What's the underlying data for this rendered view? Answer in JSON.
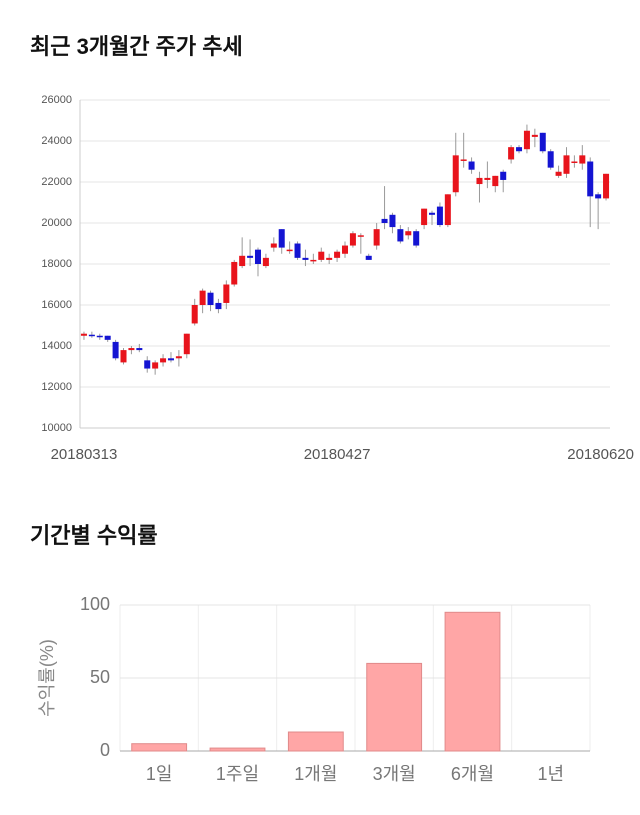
{
  "chart_data": [
    {
      "type": "candlestick",
      "title": "최근 3개월간 주가 추세",
      "categories": [
        "20180313",
        null,
        null,
        null,
        null,
        null,
        null,
        null,
        null,
        null,
        null,
        null,
        null,
        null,
        null,
        null,
        null,
        null,
        null,
        null,
        null,
        null,
        null,
        null,
        null,
        null,
        null,
        null,
        null,
        null,
        null,
        null,
        "20180427",
        null,
        null,
        null,
        null,
        null,
        null,
        null,
        null,
        null,
        null,
        null,
        null,
        null,
        null,
        null,
        null,
        null,
        null,
        null,
        null,
        null,
        null,
        null,
        null,
        null,
        null,
        null,
        null,
        null,
        null,
        null,
        null,
        null,
        "20180620"
      ],
      "open": [
        14500,
        14550,
        14500,
        14500,
        14200,
        13200,
        13800,
        13900,
        13300,
        12900,
        13200,
        13400,
        13400,
        13600,
        15100,
        16000,
        16600,
        16100,
        16100,
        17000,
        17900,
        18400,
        18700,
        17900,
        18800,
        19700,
        18700,
        19000,
        18300,
        18200,
        18200,
        18200,
        18300,
        18500,
        18900,
        19400,
        18400,
        18900,
        20200,
        20400,
        19700,
        19400,
        19600,
        19900,
        20500,
        20800,
        19900,
        21500,
        23100,
        23000,
        21900,
        22100,
        21800,
        22500,
        23100,
        23700,
        23600,
        24200,
        24400,
        23500,
        22300,
        22400,
        23000,
        22900,
        23000,
        21400,
        21200
      ],
      "high": [
        14700,
        14700,
        14600,
        14500,
        14300,
        13900,
        14000,
        14100,
        13500,
        13300,
        13600,
        13700,
        13800,
        14600,
        16300,
        16800,
        16700,
        16300,
        17200,
        18200,
        19300,
        19200,
        18800,
        18500,
        19300,
        19700,
        19100,
        19100,
        18700,
        18500,
        18800,
        18500,
        18700,
        19100,
        19600,
        19500,
        18500,
        20000,
        21800,
        20500,
        19900,
        19800,
        19700,
        20700,
        20600,
        21000,
        21400,
        24400,
        24400,
        23200,
        22500,
        23000,
        22300,
        22600,
        23800,
        23800,
        24800,
        24600,
        24400,
        23600,
        22800,
        23700,
        23300,
        23800,
        23200,
        21500,
        22400
      ],
      "low": [
        14300,
        14400,
        14300,
        14200,
        13300,
        13100,
        13600,
        13700,
        12700,
        12600,
        13000,
        13200,
        13000,
        13400,
        15000,
        15600,
        15700,
        15600,
        15800,
        16900,
        17800,
        17900,
        17400,
        17800,
        18600,
        18500,
        18500,
        18200,
        17900,
        18000,
        18100,
        18000,
        18100,
        18300,
        18800,
        18500,
        18200,
        18700,
        19700,
        19500,
        19000,
        19200,
        18800,
        19700,
        19900,
        19800,
        19800,
        21300,
        22700,
        22400,
        21000,
        21700,
        21500,
        21500,
        22900,
        23400,
        23400,
        23700,
        23400,
        22600,
        22200,
        22200,
        22700,
        22600,
        19800,
        19700,
        21100
      ],
      "close": [
        14600,
        14500,
        14450,
        14300,
        13400,
        13800,
        13900,
        13800,
        12900,
        13200,
        13400,
        13300,
        13500,
        14600,
        16000,
        16700,
        16000,
        15800,
        17000,
        18100,
        18400,
        18300,
        18000,
        18300,
        19000,
        18800,
        18700,
        18300,
        18200,
        18200,
        18600,
        18300,
        18600,
        18900,
        19500,
        19400,
        18200,
        19700,
        20000,
        19800,
        19100,
        19600,
        18900,
        20700,
        20400,
        19900,
        21400,
        23300,
        23100,
        22600,
        22200,
        22200,
        22300,
        22100,
        23700,
        23500,
        24500,
        24300,
        23500,
        22700,
        22500,
        23300,
        23000,
        23300,
        21300,
        21200,
        22400
      ],
      "up_color": "#e8141c",
      "down_color": "#1414d2",
      "ylim": [
        10000,
        26000
      ],
      "yticks": [
        10000,
        12000,
        14000,
        16000,
        18000,
        20000,
        22000,
        24000,
        26000
      ],
      "grid": true
    },
    {
      "type": "bar",
      "title": "기간별 수익률",
      "ylabel": "수익률(%)",
      "categories": [
        "1일",
        "1주일",
        "1개월",
        "3개월",
        "6개월",
        "1년"
      ],
      "values": [
        5,
        2,
        13,
        60,
        95,
        null
      ],
      "color": "#ffa6a6",
      "ylim": [
        0,
        100
      ],
      "yticks": [
        0,
        50,
        100
      ],
      "grid": true
    }
  ]
}
